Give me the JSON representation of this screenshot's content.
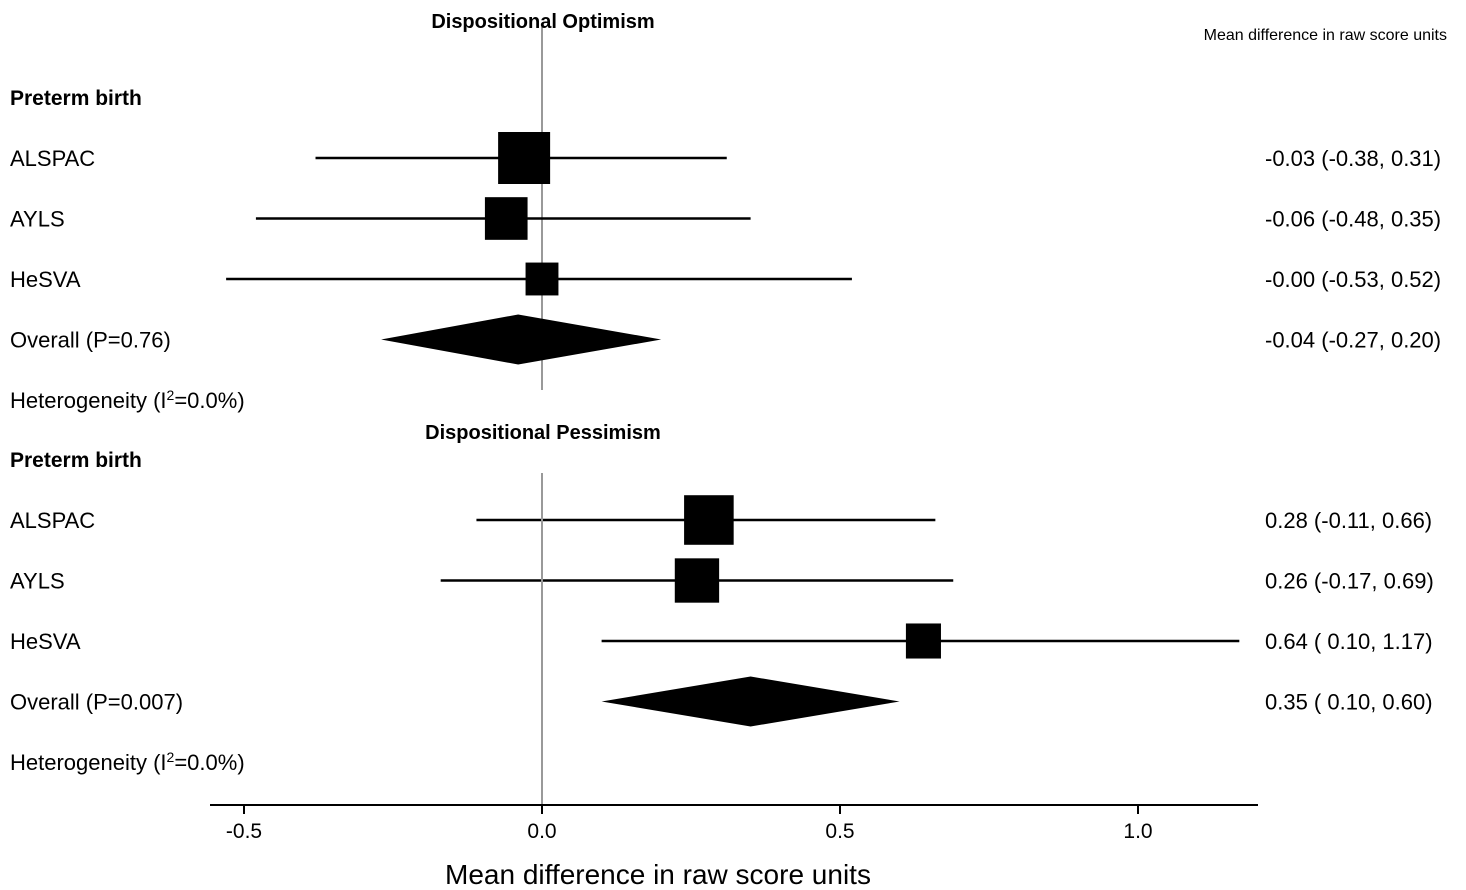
{
  "chart_data": {
    "type": "forest",
    "column_header": "Mean difference in raw score units",
    "xlabel": "Mean difference in raw score units",
    "x_ticks": [
      -0.5,
      0.0,
      0.5,
      1.0
    ],
    "x_tick_labels": [
      "-0.5",
      "0.0",
      "0.5",
      "1.0"
    ],
    "xlim": [
      -0.56,
      1.2
    ],
    "reference_line": 0,
    "panels": [
      {
        "title": "Dispositional Optimism",
        "group_label": "Preterm birth",
        "studies": [
          {
            "label": "ALSPAC",
            "estimate": -0.03,
            "lower": -0.38,
            "upper": 0.31,
            "ci_text": "-0.03 (-0.38, 0.31)",
            "weight": 0.55
          },
          {
            "label": "AYLS",
            "estimate": -0.06,
            "lower": -0.48,
            "upper": 0.35,
            "ci_text": "-0.06 (-0.48, 0.35)",
            "weight": 0.37
          },
          {
            "label": "HeSVA",
            "estimate": -0.0,
            "lower": -0.53,
            "upper": 0.52,
            "ci_text": "-0.00 (-0.53, 0.52)",
            "weight": 0.22
          }
        ],
        "overall": {
          "label": "Overall (P=0.76)",
          "estimate": -0.04,
          "lower": -0.27,
          "upper": 0.2,
          "ci_text": "-0.04 (-0.27, 0.20)"
        },
        "heterogeneity": {
          "prefix": "Heterogeneity (I",
          "sup": "2",
          "suffix": "=0.0%)"
        }
      },
      {
        "title": "Dispositional Pessimism",
        "group_label": "Preterm birth",
        "studies": [
          {
            "label": "ALSPAC",
            "estimate": 0.28,
            "lower": -0.11,
            "upper": 0.66,
            "ci_text": "0.28 (-0.11, 0.66)",
            "weight": 0.5
          },
          {
            "label": "AYLS",
            "estimate": 0.26,
            "lower": -0.17,
            "upper": 0.69,
            "ci_text": "0.26 (-0.17, 0.69)",
            "weight": 0.4
          },
          {
            "label": "HeSVA",
            "estimate": 0.64,
            "lower": 0.1,
            "upper": 1.17,
            "ci_text": "0.64 ( 0.10, 1.17)",
            "weight": 0.25
          }
        ],
        "overall": {
          "label": "Overall (P=0.007)",
          "estimate": 0.35,
          "lower": 0.1,
          "upper": 0.6,
          "ci_text": "0.35 ( 0.10, 0.60)"
        },
        "heterogeneity": {
          "prefix": "Heterogeneity (I",
          "sup": "2",
          "suffix": "=0.0%)"
        }
      }
    ]
  }
}
